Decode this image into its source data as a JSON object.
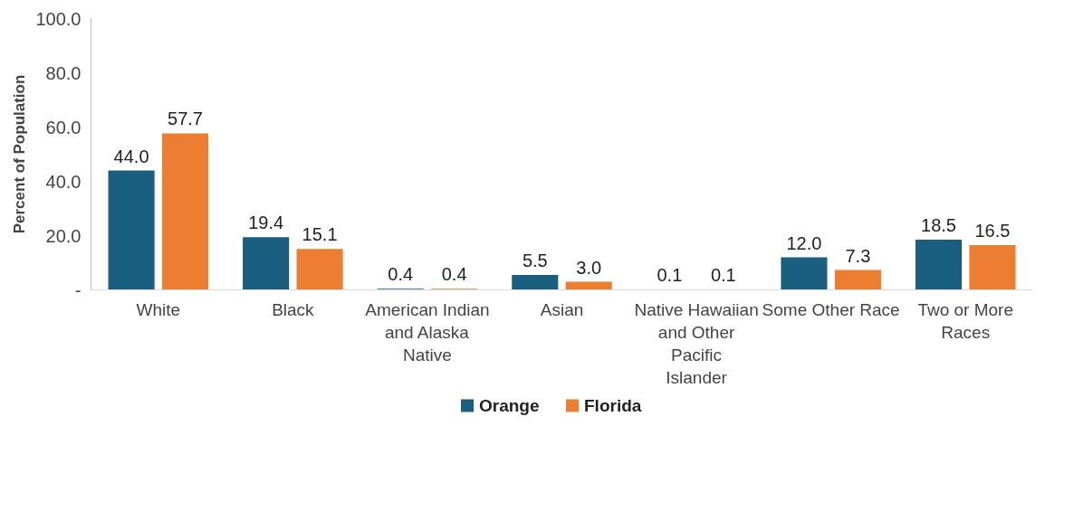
{
  "chart_data": {
    "type": "bar",
    "ylabel": "Percent of Population",
    "categories": [
      "White",
      "Black",
      "American Indian and Alaska Native",
      "Asian",
      "Native Hawaiian and Other Pacific Islander",
      "Some Other Race",
      "Two or More Races"
    ],
    "series": [
      {
        "name": "Orange",
        "color": "#1a5e80",
        "values": [
          44.0,
          19.4,
          0.4,
          5.5,
          0.1,
          12.0,
          18.5
        ],
        "value_labels": [
          "44.0",
          "19.4",
          "0.4",
          "5.5",
          "0.1",
          "12.0",
          "18.5"
        ]
      },
      {
        "name": "Florida",
        "color": "#ed7d31",
        "values": [
          57.7,
          15.1,
          0.4,
          3.0,
          0.1,
          7.3,
          16.5
        ],
        "value_labels": [
          "57.7",
          "15.1",
          "0.4",
          "3.0",
          "0.1",
          "7.3",
          "16.5"
        ]
      }
    ],
    "ylim": [
      0,
      100
    ],
    "yticks": [
      {
        "value": 0,
        "label": "-"
      },
      {
        "value": 20,
        "label": "20.0"
      },
      {
        "value": 40,
        "label": "40.0"
      },
      {
        "value": 60,
        "label": "60.0"
      },
      {
        "value": 80,
        "label": "80.0"
      },
      {
        "value": 100,
        "label": "100.0"
      }
    ],
    "grid": false,
    "legend": "bottom"
  }
}
